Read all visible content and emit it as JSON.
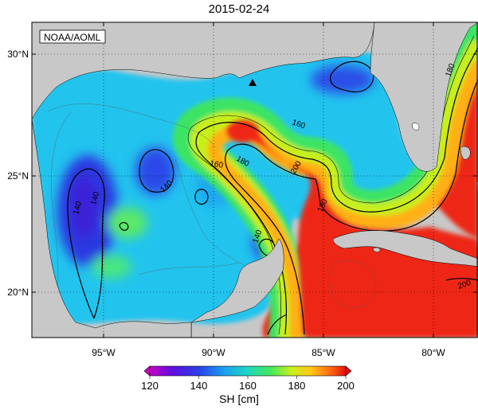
{
  "title": "2015-02-24",
  "credit": "NOAA/AOML",
  "map": {
    "region": "Gulf of Mexico",
    "lon_range": [
      -98.5,
      -77.5
    ],
    "lat_range": [
      18,
      31
    ],
    "lon_ticks": [
      {
        "label": "95°W",
        "value": -95
      },
      {
        "label": "90°W",
        "value": -90
      },
      {
        "label": "85°W",
        "value": -85
      },
      {
        "label": "80°W",
        "value": -80
      }
    ],
    "lat_ticks": [
      {
        "label": "30°N",
        "value": 30
      },
      {
        "label": "25°N",
        "value": 25
      },
      {
        "label": "20°N",
        "value": 20
      }
    ],
    "grid": "dotted",
    "land_color": "#c8c8c8",
    "marker": {
      "name": "triangle",
      "lon": -88.4,
      "lat": 28.8
    },
    "contour_labels": [
      "140",
      "140",
      "140",
      "160",
      "160",
      "180",
      "180",
      "200",
      "140",
      "180",
      "200"
    ]
  },
  "colorbar": {
    "min": 120,
    "max": 200,
    "ticks": [
      "120",
      "140",
      "160",
      "180",
      "200"
    ],
    "label": "SH [cm]",
    "colors": [
      "#d000d0",
      "#3b2bd8",
      "#1f9ff0",
      "#1bd6c8",
      "#3fe36c",
      "#c9f01c",
      "#ffd21a",
      "#ff7a12",
      "#ee1f14"
    ]
  }
}
